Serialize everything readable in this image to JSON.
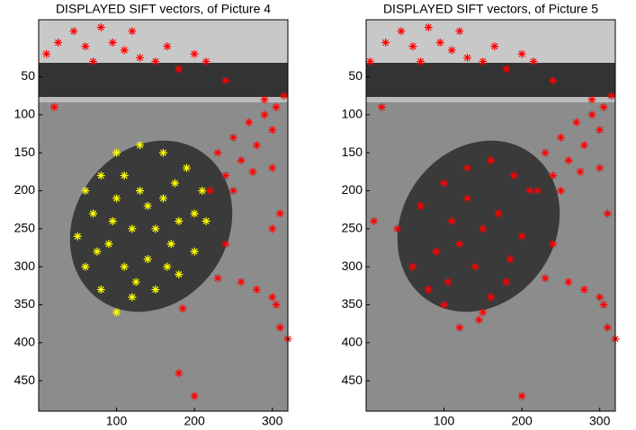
{
  "chart_data": [
    {
      "type": "scatter",
      "title": "DISPLAYED SIFT vectors, of Picture 4",
      "xlim": [
        0,
        320
      ],
      "ylim": [
        -25,
        490
      ],
      "y_reversed": true,
      "xticks": [
        100,
        200,
        300
      ],
      "yticks": [
        50,
        100,
        150,
        200,
        250,
        300,
        350,
        400,
        450
      ],
      "marker": "*",
      "series": [
        {
          "color": "#ff0000",
          "x": [
            10,
            25,
            45,
            60,
            80,
            95,
            110,
            130,
            150,
            165,
            180,
            200,
            215,
            240,
            120,
            70,
            20,
            290,
            305,
            315,
            230,
            250,
            270,
            290,
            240,
            260,
            280,
            300,
            220,
            250,
            275,
            300,
            240,
            260,
            280,
            300,
            310,
            320,
            305,
            185,
            180,
            200,
            230,
            310,
            300
          ],
          "y": [
            20,
            5,
            -10,
            10,
            -15,
            5,
            15,
            25,
            30,
            10,
            40,
            20,
            30,
            55,
            -10,
            30,
            90,
            80,
            90,
            75,
            150,
            130,
            110,
            100,
            180,
            160,
            140,
            120,
            200,
            200,
            175,
            170,
            270,
            320,
            330,
            340,
            380,
            395,
            350,
            355,
            440,
            470,
            315,
            230,
            250
          ]
        },
        {
          "color": "#ffff00",
          "x": [
            60,
            80,
            100,
            130,
            160,
            190,
            210,
            215,
            200,
            180,
            150,
            120,
            100,
            80,
            60,
            50,
            70,
            100,
            130,
            160,
            180,
            170,
            140,
            110,
            90,
            120,
            150,
            110,
            175,
            95,
            140,
            165,
            75,
            125,
            200
          ],
          "y": [
            200,
            180,
            150,
            140,
            150,
            170,
            200,
            240,
            280,
            310,
            330,
            340,
            360,
            330,
            300,
            260,
            230,
            210,
            200,
            210,
            240,
            270,
            290,
            300,
            270,
            250,
            250,
            180,
            190,
            240,
            220,
            300,
            280,
            320,
            230
          ]
        }
      ]
    },
    {
      "type": "scatter",
      "title": "DISPLAYED SIFT vectors, of Picture 5",
      "xlim": [
        0,
        320
      ],
      "ylim": [
        -25,
        490
      ],
      "y_reversed": true,
      "xticks": [
        100,
        200,
        300
      ],
      "yticks": [
        50,
        100,
        150,
        200,
        250,
        300,
        350,
        400,
        450
      ],
      "marker": "*",
      "series": [
        {
          "color": "#ff0000",
          "x": [
            5,
            25,
            45,
            60,
            80,
            95,
            110,
            130,
            150,
            165,
            180,
            200,
            215,
            240,
            120,
            70,
            20,
            290,
            305,
            315,
            230,
            250,
            270,
            290,
            240,
            260,
            280,
            300,
            220,
            250,
            275,
            300,
            240,
            260,
            280,
            300,
            310,
            320,
            305,
            200,
            230,
            310,
            10,
            40,
            70,
            100,
            130,
            160,
            190,
            210,
            200,
            180,
            150,
            120,
            100,
            80,
            60,
            120,
            150,
            170,
            140,
            110,
            90,
            160,
            130,
            185,
            105,
            145
          ],
          "y": [
            30,
            5,
            -10,
            10,
            -15,
            5,
            15,
            25,
            30,
            10,
            40,
            20,
            30,
            55,
            -10,
            30,
            90,
            80,
            90,
            75,
            150,
            130,
            110,
            100,
            180,
            160,
            140,
            120,
            200,
            200,
            175,
            170,
            270,
            320,
            330,
            340,
            380,
            395,
            350,
            470,
            315,
            230,
            240,
            250,
            220,
            190,
            170,
            160,
            180,
            200,
            260,
            320,
            360,
            380,
            350,
            330,
            300,
            270,
            250,
            230,
            300,
            240,
            280,
            340,
            210,
            290,
            320,
            370
          ]
        }
      ]
    }
  ]
}
